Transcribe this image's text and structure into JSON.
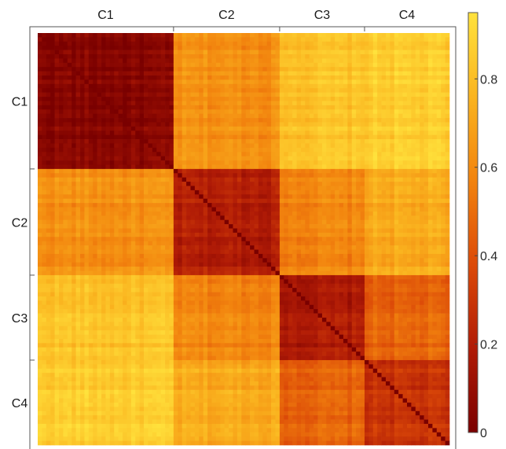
{
  "chart_data": {
    "type": "heatmap",
    "title": "",
    "xlabel": "",
    "ylabel": "",
    "clusters": [
      {
        "name": "C1",
        "size": 32
      },
      {
        "name": "C2",
        "size": 25
      },
      {
        "name": "C3",
        "size": 20
      },
      {
        "name": "C4",
        "size": 20
      }
    ],
    "block_mean_values": [
      [
        0.04,
        0.62,
        0.82,
        0.86
      ],
      [
        0.62,
        0.2,
        0.58,
        0.72
      ],
      [
        0.82,
        0.58,
        0.18,
        0.46
      ],
      [
        0.86,
        0.72,
        0.46,
        0.28
      ]
    ],
    "diagonal_value": 0,
    "colorbar": {
      "range": [
        0,
        0.95
      ],
      "ticks": [
        {
          "value": 0,
          "label": "0"
        },
        {
          "value": 0.2,
          "label": "0.2"
        },
        {
          "value": 0.4,
          "label": "0.4"
        },
        {
          "value": 0.6,
          "label": "0.6"
        },
        {
          "value": 0.8,
          "label": "0.8"
        }
      ],
      "colors": [
        "#7a0000",
        "#b01b06",
        "#dc4a08",
        "#f2830e",
        "#fab41f",
        "#ffe23c"
      ]
    }
  }
}
